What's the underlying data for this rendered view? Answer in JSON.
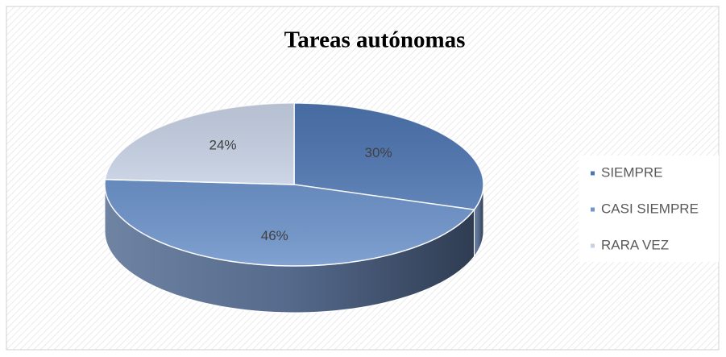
{
  "chart_data": {
    "type": "pie3d",
    "title": "Tareas autónomas",
    "categories": [
      "SIEMPRE",
      "CASI SIEMPRE",
      "RARA VEZ"
    ],
    "values": [
      30,
      46,
      24
    ],
    "value_labels": [
      "30%",
      "46%",
      "24%"
    ],
    "colors": [
      "#4d75b0",
      "#6f95cc",
      "#c6d1e4"
    ],
    "legend": "right"
  }
}
